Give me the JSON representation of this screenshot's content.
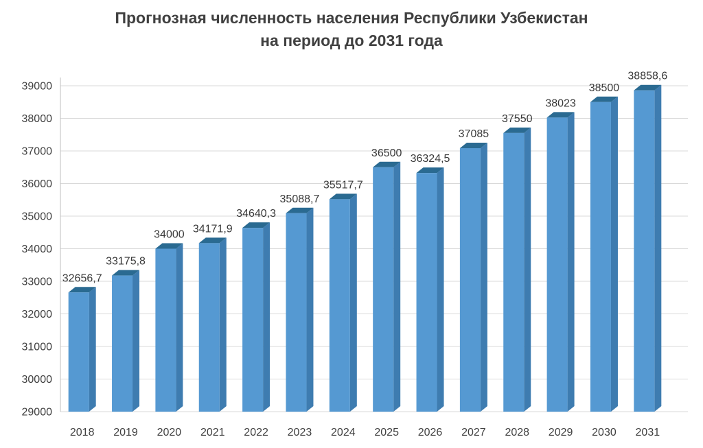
{
  "title": {
    "line1": "Прогнозная численность населения Республики Узбекистан",
    "line2": "на период до 2031 года"
  },
  "chart_data": {
    "type": "bar",
    "title": "Прогнозная численность населения Республики Узбекистан на период до 2031 года",
    "xlabel": "",
    "ylabel": "",
    "categories": [
      "2018",
      "2019",
      "2020",
      "2021",
      "2022",
      "2023",
      "2024",
      "2025",
      "2026",
      "2027",
      "2028",
      "2029",
      "2030",
      "2031"
    ],
    "values": [
      32656.7,
      33175.8,
      34000,
      34171.9,
      34640.3,
      35088.7,
      35517.7,
      36500,
      36324.5,
      37085,
      37550,
      38023,
      38500,
      38858.6
    ],
    "value_labels": [
      "32656,7",
      "33175,8",
      "34000",
      "34171,9",
      "34640,3",
      "35088,7",
      "35517,7",
      "36500",
      "36324,5",
      "37085",
      "37550",
      "38023",
      "38500",
      "38858,6"
    ],
    "ylim": [
      29000,
      39000
    ],
    "ytick_step": 1000,
    "grid": true,
    "legend": "none",
    "style_3d": true,
    "colors": {
      "bar_front": "#5599D2",
      "bar_side": "#3E7CB0",
      "bar_top": "#2A6A91",
      "gridline": "#D9D9D9",
      "axis": "#BFBFBF",
      "text": "#404040"
    }
  }
}
